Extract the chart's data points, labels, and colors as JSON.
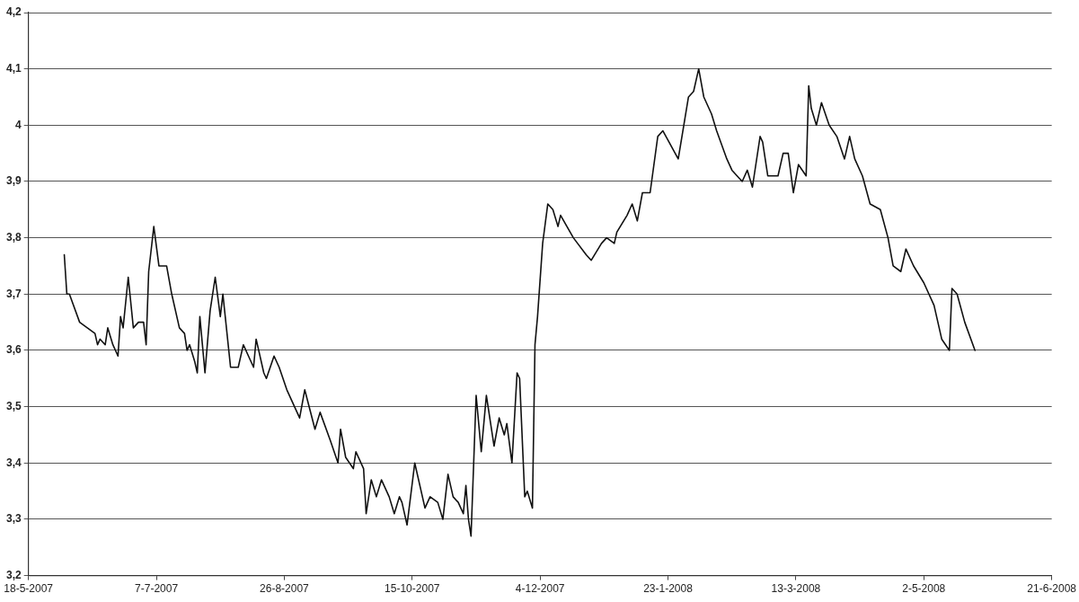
{
  "chart_data": {
    "type": "line",
    "grid": "y",
    "legend": false,
    "marker": "none",
    "line_style": "solid",
    "xlim": [
      "2007-05-18",
      "2008-06-21"
    ],
    "xticks": [
      {
        "value": "2007-05-18",
        "label": "18-5-2007"
      },
      {
        "value": "2007-07-07",
        "label": "7-7-2007"
      },
      {
        "value": "2007-08-26",
        "label": "26-8-2007"
      },
      {
        "value": "2007-10-15",
        "label": "15-10-2007"
      },
      {
        "value": "2007-12-04",
        "label": "4-12-2007"
      },
      {
        "value": "2008-01-23",
        "label": "23-1-2008"
      },
      {
        "value": "2008-03-13",
        "label": "13-3-2008"
      },
      {
        "value": "2008-05-02",
        "label": "2-5-2008"
      },
      {
        "value": "2008-06-21",
        "label": "21-6-2008"
      }
    ],
    "ylim": [
      3.2,
      4.2
    ],
    "yticks": [
      {
        "value": 3.2,
        "label": "3,2"
      },
      {
        "value": 3.3,
        "label": "3,3"
      },
      {
        "value": 3.4,
        "label": "3,4"
      },
      {
        "value": 3.5,
        "label": "3,5"
      },
      {
        "value": 3.6,
        "label": "3,6"
      },
      {
        "value": 3.7,
        "label": "3,7"
      },
      {
        "value": 3.8,
        "label": "3,8"
      },
      {
        "value": 3.9,
        "label": "3,9"
      },
      4,
      {
        "value": 4.1,
        "label": "4,1"
      },
      {
        "value": 4.2,
        "label": "4,2"
      }
    ],
    "series": [
      {
        "color": "#111111",
        "x": [
          "2007-06-01",
          "2007-06-02",
          "2007-06-03",
          "2007-06-07",
          "2007-06-10",
          "2007-06-13",
          "2007-06-14",
          "2007-06-15",
          "2007-06-17",
          "2007-06-18",
          "2007-06-20",
          "2007-06-22",
          "2007-06-23",
          "2007-06-24",
          "2007-06-26",
          "2007-06-28",
          "2007-06-30",
          "2007-07-02",
          "2007-07-03",
          "2007-07-04",
          "2007-07-06",
          "2007-07-08",
          "2007-07-11",
          "2007-07-13",
          "2007-07-16",
          "2007-07-18",
          "2007-07-19",
          "2007-07-20",
          "2007-07-22",
          "2007-07-23",
          "2007-07-24",
          "2007-07-26",
          "2007-07-28",
          "2007-07-30",
          "2007-08-01",
          "2007-08-02",
          "2007-08-05",
          "2007-08-08",
          "2007-08-10",
          "2007-08-12",
          "2007-08-14",
          "2007-08-15",
          "2007-08-18",
          "2007-08-19",
          "2007-08-22",
          "2007-08-24",
          "2007-08-27",
          "2007-09-01",
          "2007-09-03",
          "2007-09-07",
          "2007-09-09",
          "2007-09-13",
          "2007-09-16",
          "2007-09-17",
          "2007-09-19",
          "2007-09-22",
          "2007-09-23",
          "2007-09-26",
          "2007-09-27",
          "2007-09-29",
          "2007-10-01",
          "2007-10-03",
          "2007-10-06",
          "2007-10-08",
          "2007-10-10",
          "2007-10-11",
          "2007-10-13",
          "2007-10-16",
          "2007-10-20",
          "2007-10-22",
          "2007-10-25",
          "2007-10-27",
          "2007-10-29",
          "2007-10-31",
          "2007-11-02",
          "2007-11-04",
          "2007-11-05",
          "2007-11-06",
          "2007-11-07",
          "2007-11-09",
          "2007-11-11",
          "2007-11-13",
          "2007-11-16",
          "2007-11-18",
          "2007-11-20",
          "2007-11-21",
          "2007-11-23",
          "2007-11-25",
          "2007-11-26",
          "2007-11-28",
          "2007-11-29",
          "2007-12-01",
          "2007-12-02",
          "2007-12-03",
          "2007-12-05",
          "2007-12-07",
          "2007-12-09",
          "2007-12-11",
          "2007-12-12",
          "2007-12-17",
          "2007-12-22",
          "2007-12-24",
          "2007-12-28",
          "2007-12-30",
          "2008-01-02",
          "2008-01-03",
          "2008-01-07",
          "2008-01-09",
          "2008-01-11",
          "2008-01-13",
          "2008-01-16",
          "2008-01-19",
          "2008-01-21",
          "2008-01-27",
          "2008-01-31",
          "2008-02-02",
          "2008-02-04",
          "2008-02-06",
          "2008-02-09",
          "2008-02-11",
          "2008-02-15",
          "2008-02-17",
          "2008-02-21",
          "2008-02-23",
          "2008-02-25",
          "2008-02-28",
          "2008-02-29",
          "2008-03-02",
          "2008-03-06",
          "2008-03-08",
          "2008-03-10",
          "2008-03-12",
          "2008-03-14",
          "2008-03-17",
          "2008-03-18",
          "2008-03-19",
          "2008-03-21",
          "2008-03-23",
          "2008-03-26",
          "2008-03-29",
          "2008-04-01",
          "2008-04-03",
          "2008-04-05",
          "2008-04-08",
          "2008-04-11",
          "2008-04-15",
          "2008-04-18",
          "2008-04-20",
          "2008-04-23",
          "2008-04-25",
          "2008-04-28",
          "2008-05-02",
          "2008-05-06",
          "2008-05-09",
          "2008-05-12",
          "2008-05-13",
          "2008-05-15",
          "2008-05-18",
          "2008-05-22"
        ],
        "values": [
          3.77,
          3.7,
          3.7,
          3.65,
          3.64,
          3.63,
          3.61,
          3.62,
          3.61,
          3.64,
          3.61,
          3.59,
          3.66,
          3.64,
          3.73,
          3.64,
          3.65,
          3.65,
          3.61,
          3.74,
          3.82,
          3.75,
          3.75,
          3.7,
          3.64,
          3.63,
          3.6,
          3.61,
          3.58,
          3.56,
          3.66,
          3.56,
          3.67,
          3.73,
          3.66,
          3.7,
          3.57,
          3.57,
          3.61,
          3.59,
          3.57,
          3.62,
          3.56,
          3.55,
          3.59,
          3.57,
          3.53,
          3.48,
          3.53,
          3.46,
          3.49,
          3.44,
          3.4,
          3.46,
          3.41,
          3.39,
          3.42,
          3.39,
          3.31,
          3.37,
          3.34,
          3.37,
          3.34,
          3.31,
          3.34,
          3.33,
          3.29,
          3.4,
          3.32,
          3.34,
          3.33,
          3.3,
          3.38,
          3.34,
          3.33,
          3.31,
          3.36,
          3.3,
          3.27,
          3.52,
          3.42,
          3.52,
          3.43,
          3.48,
          3.45,
          3.47,
          3.4,
          3.56,
          3.55,
          3.34,
          3.35,
          3.32,
          3.61,
          3.66,
          3.79,
          3.86,
          3.85,
          3.82,
          3.84,
          3.8,
          3.77,
          3.76,
          3.79,
          3.8,
          3.79,
          3.81,
          3.84,
          3.86,
          3.83,
          3.88,
          3.88,
          3.98,
          3.99,
          3.94,
          4.05,
          4.06,
          4.1,
          4.05,
          4.02,
          3.99,
          3.94,
          3.92,
          3.9,
          3.92,
          3.89,
          3.98,
          3.97,
          3.91,
          3.91,
          3.95,
          3.95,
          3.88,
          3.93,
          3.91,
          4.07,
          4.03,
          4.0,
          4.04,
          4.0,
          3.98,
          3.94,
          3.98,
          3.94,
          3.91,
          3.86,
          3.85,
          3.8,
          3.75,
          3.74,
          3.78,
          3.75,
          3.72,
          3.68,
          3.62,
          3.6,
          3.71,
          3.7,
          3.65,
          3.6
        ]
      }
    ]
  }
}
